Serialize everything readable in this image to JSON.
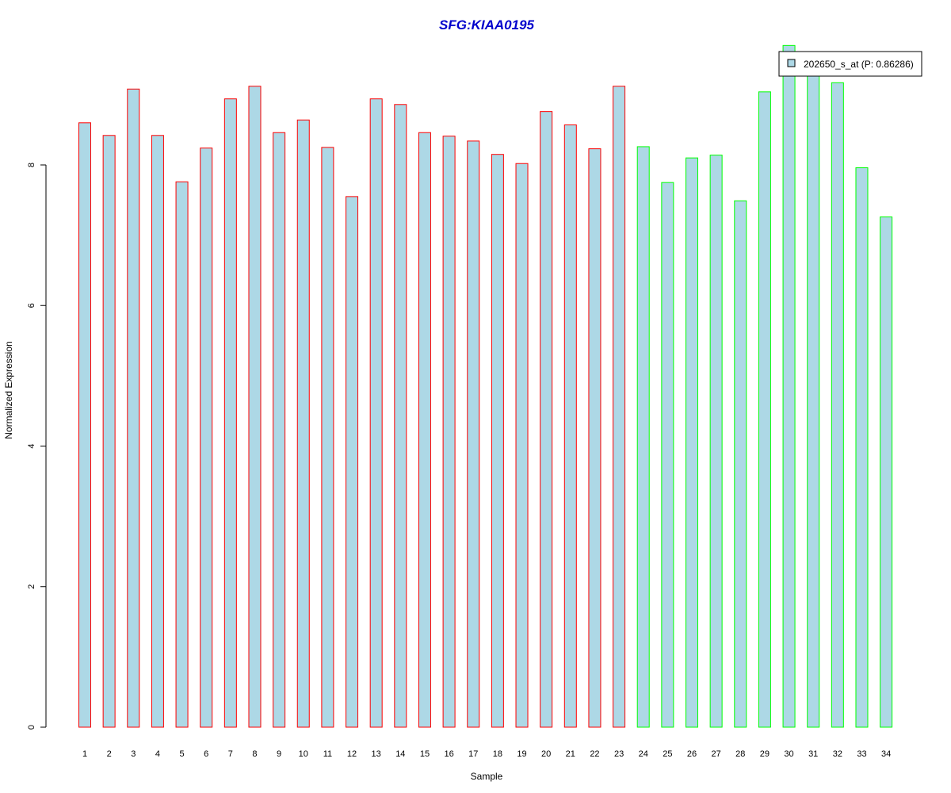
{
  "chart_data": {
    "type": "bar",
    "title": "SFG:KIAA0195",
    "title_color": "#0000cc",
    "xlabel": "Sample",
    "ylabel": "Normalized Expression",
    "ylim": [
      0,
      9.75
    ],
    "y_ticks": [
      0,
      2,
      4,
      6,
      8
    ],
    "grid": false,
    "bar_fill": "#add8e6",
    "group_colors": {
      "group1": "#ff0000",
      "group2": "#00ff00"
    },
    "categories": [
      "1",
      "2",
      "3",
      "4",
      "5",
      "6",
      "7",
      "8",
      "9",
      "10",
      "11",
      "12",
      "13",
      "14",
      "15",
      "16",
      "17",
      "18",
      "19",
      "20",
      "21",
      "22",
      "23",
      "24",
      "25",
      "26",
      "27",
      "28",
      "29",
      "30",
      "31",
      "32",
      "33",
      "34"
    ],
    "values": [
      8.6,
      8.42,
      9.08,
      8.42,
      7.76,
      8.24,
      8.94,
      9.12,
      8.46,
      8.64,
      8.25,
      7.55,
      8.94,
      8.86,
      8.46,
      8.41,
      8.34,
      8.15,
      8.02,
      8.76,
      8.57,
      8.23,
      9.12,
      8.26,
      7.75,
      8.1,
      8.14,
      7.49,
      9.04,
      9.7,
      9.3,
      9.17,
      7.96,
      7.26
    ],
    "groups": [
      "group1",
      "group1",
      "group1",
      "group1",
      "group1",
      "group1",
      "group1",
      "group1",
      "group1",
      "group1",
      "group1",
      "group1",
      "group1",
      "group1",
      "group1",
      "group1",
      "group1",
      "group1",
      "group1",
      "group1",
      "group1",
      "group1",
      "group1",
      "group2",
      "group2",
      "group2",
      "group2",
      "group2",
      "group2",
      "group2",
      "group2",
      "group2",
      "group2",
      "group2"
    ],
    "legend": {
      "label": "202650_s_at (P: 0.86286)",
      "position": "top-right"
    }
  }
}
